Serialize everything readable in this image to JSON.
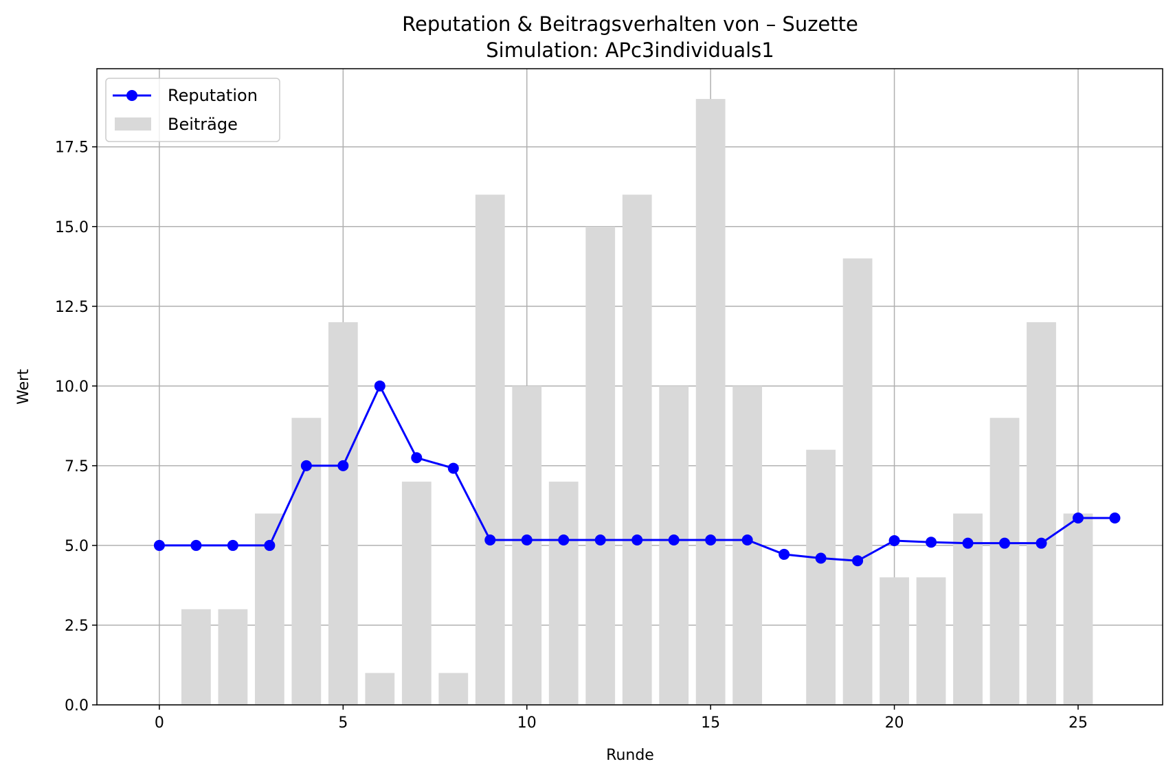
{
  "chart_data": {
    "type": "bar+line",
    "title": "Reputation & Beitragsverhalten von – Suzette",
    "subtitle": "Simulation: APc3individuals1",
    "xlabel": "Runde",
    "ylabel": "Wert",
    "xlim": [
      -1.7,
      27.3
    ],
    "ylim": [
      0,
      19.95
    ],
    "xticks": [
      0,
      5,
      10,
      15,
      20,
      25
    ],
    "yticks": [
      0.0,
      2.5,
      5.0,
      7.5,
      10.0,
      12.5,
      15.0,
      17.5
    ],
    "ytick_labels": [
      "0.0",
      "2.5",
      "5.0",
      "7.5",
      "10.0",
      "12.5",
      "15.0",
      "17.5"
    ],
    "grid": true,
    "legend_position": "upper-left",
    "series": [
      {
        "name": "Reputation",
        "kind": "line",
        "color": "#0000ff",
        "marker": "circle",
        "x": [
          0,
          1,
          2,
          3,
          4,
          5,
          6,
          7,
          8,
          9,
          10,
          11,
          12,
          13,
          14,
          15,
          16,
          17,
          18,
          19,
          20,
          21,
          22,
          23,
          24,
          25,
          26
        ],
        "values": [
          5.0,
          5.0,
          5.0,
          5.0,
          7.5,
          7.5,
          10.0,
          7.75,
          7.42,
          5.17,
          5.17,
          5.17,
          5.17,
          5.17,
          5.17,
          5.17,
          5.17,
          4.72,
          4.6,
          4.52,
          5.15,
          5.1,
          5.07,
          5.07,
          5.07,
          5.86,
          5.86
        ]
      },
      {
        "name": "Beiträge",
        "kind": "bar",
        "color": "#d9d9d9",
        "x": [
          1,
          2,
          3,
          4,
          5,
          6,
          7,
          8,
          9,
          10,
          11,
          12,
          13,
          14,
          15,
          16,
          17,
          18,
          19,
          20,
          21,
          22,
          23,
          24,
          25
        ],
        "values": [
          3,
          3,
          6,
          9,
          12,
          1,
          7,
          1,
          16,
          10,
          7,
          15,
          16,
          10,
          19,
          10,
          0,
          8,
          14,
          4,
          4,
          6,
          9,
          12,
          6
        ]
      }
    ]
  }
}
